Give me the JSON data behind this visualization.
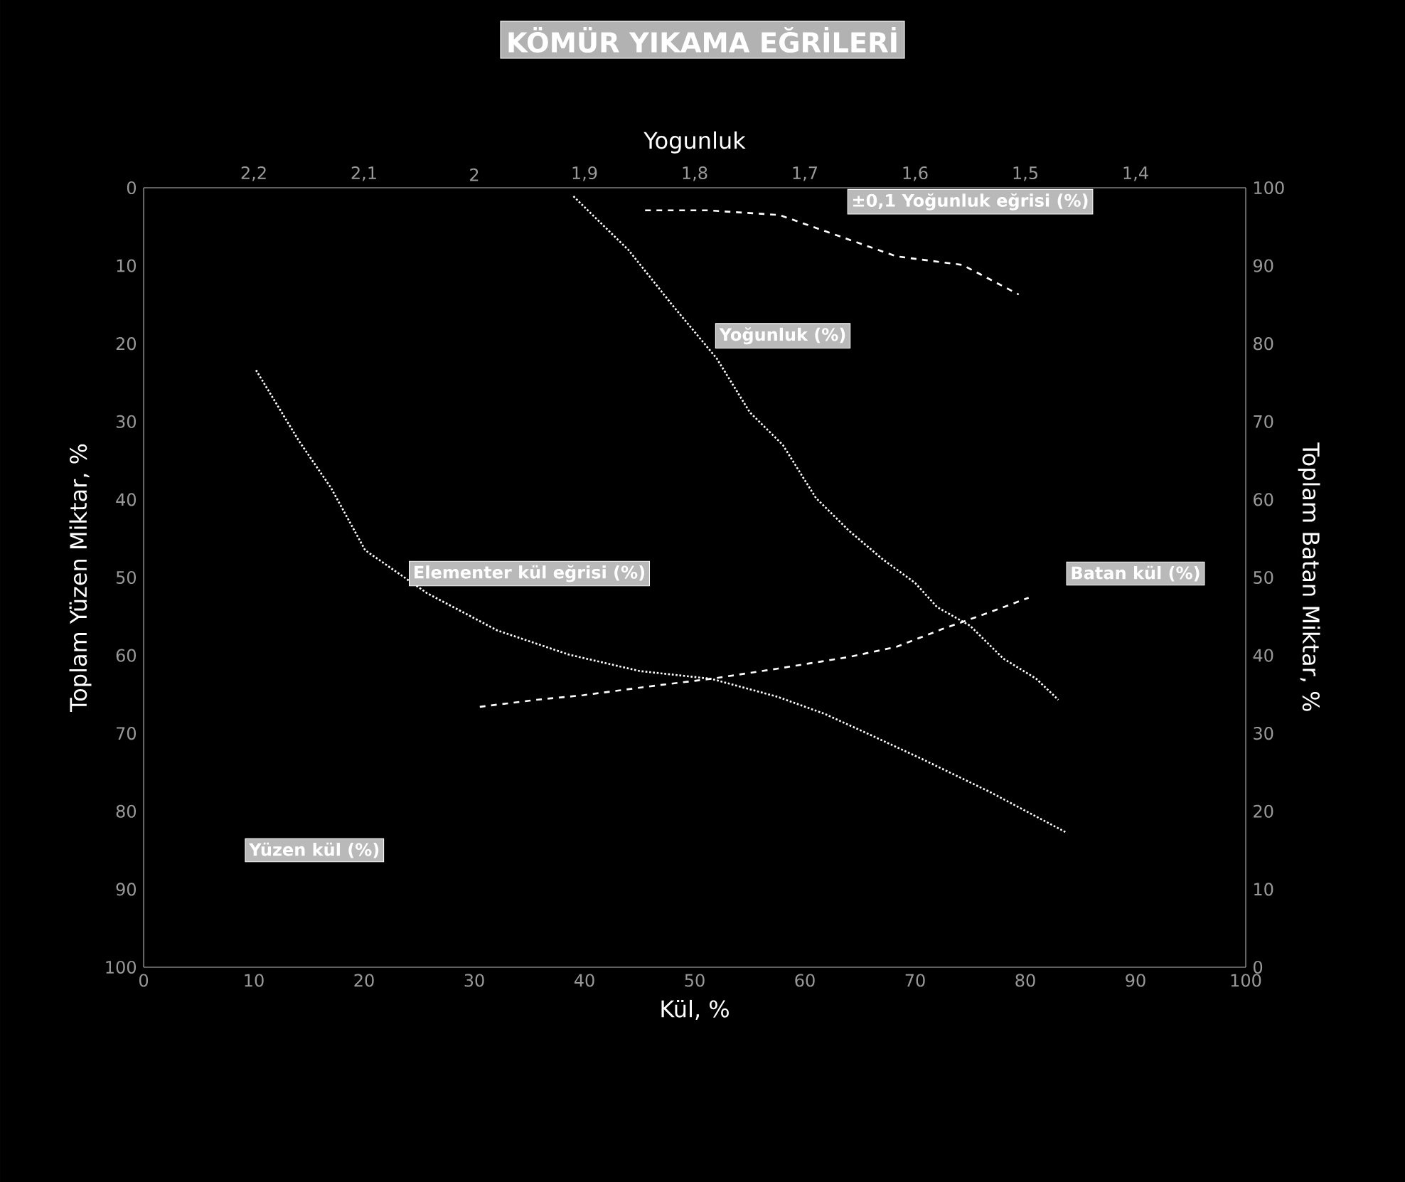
{
  "chart_data": {
    "type": "line",
    "title": "KÖMÜR YIKAMA EĞRİLERİ",
    "xlabel": "Kül, %",
    "ylabel": "Toplam Yüzen Miktar, %",
    "y2label": "Toplam Batan Miktar, %",
    "x2label": "Yogunluk",
    "xlim": [
      0,
      100
    ],
    "xticks": [
      0,
      10,
      20,
      30,
      40,
      50,
      60,
      70,
      80,
      90,
      100
    ],
    "ylim": [
      100,
      0
    ],
    "yticks": [
      0,
      10,
      20,
      30,
      40,
      50,
      60,
      70,
      80,
      90,
      100
    ],
    "y2lim": [
      0,
      100
    ],
    "y2ticks": [
      0,
      10,
      20,
      30,
      40,
      50,
      60,
      70,
      80,
      90,
      100
    ],
    "x2lim": [
      2.3,
      1.3
    ],
    "x2ticks": [
      {
        "value": 2.2,
        "label": "2,2"
      },
      {
        "value": 2.1,
        "label": "2,1"
      },
      2,
      {
        "value": 1.9,
        "label": "1,9"
      },
      {
        "value": 1.8,
        "label": "1,8"
      },
      {
        "value": 1.7,
        "label": "1,7"
      },
      {
        "value": 1.6,
        "label": "1,6"
      },
      {
        "value": 1.5,
        "label": "1,5"
      },
      {
        "value": 1.4,
        "label": "1,4"
      }
    ],
    "series": [
      {
        "color": "#ffffff",
        "line_style": "dotted",
        "x": [
          10.2,
          14.1,
          17.0,
          20.1,
          25.7,
          32.1,
          38.6,
          45.0,
          51.5,
          57.5,
          61.8,
          66.1,
          70.5,
          76.9,
          83.7
        ],
        "values": [
          23.4,
          32.5,
          38.5,
          46.5,
          52.0,
          56.8,
          59.9,
          62.0,
          63.0,
          65.3,
          67.5,
          70.3,
          73.2,
          77.6,
          82.7
        ]
      },
      {
        "color": "#ffffff",
        "line_style": "dashed",
        "axis": "y2",
        "x": [
          30.5,
          35.6,
          39.9,
          46.3,
          51.5,
          57.5,
          64.0,
          68.3,
          72.5,
          76.9,
          80.3
        ],
        "values": [
          33.4,
          34.3,
          34.9,
          36.1,
          37.0,
          38.3,
          39.8,
          41.1,
          43.4,
          45.6,
          47.4
        ]
      },
      {
        "color": "#ffffff",
        "line_style": "dotted",
        "axis": "x2",
        "x": [
          1.91,
          1.86,
          1.82,
          1.78,
          1.75,
          1.72,
          1.69,
          1.66,
          1.63,
          1.6,
          1.58,
          1.55,
          1.52,
          1.49,
          1.47
        ],
        "values": [
          1.1,
          8.0,
          15.1,
          21.9,
          28.8,
          33.0,
          39.8,
          44.0,
          47.6,
          50.7,
          53.8,
          56.2,
          60.4,
          63.0,
          65.7
        ]
      },
      {
        "color": "#ffffff",
        "line_style": "dashed",
        "x": [
          45.5,
          51.2,
          57.7,
          68.3,
          74.3,
          79.4
        ],
        "values": [
          2.9,
          2.9,
          3.5,
          8.8,
          9.9,
          13.7
        ]
      }
    ],
    "annotations": [
      "±0,1 Yoğunluk eğrisi (%)",
      "Yoğunluk (%)",
      "Elementer kül eğrisi (%)",
      "Batan kül (%)",
      "Yüzen kül (%)"
    ]
  }
}
